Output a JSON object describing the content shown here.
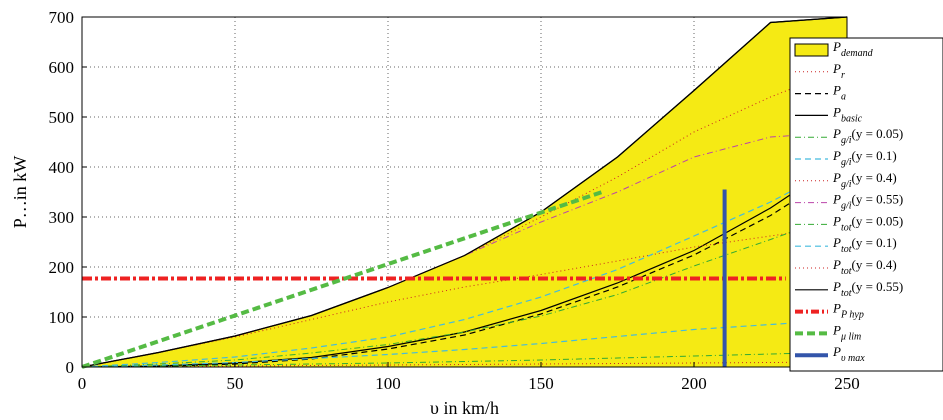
{
  "chart_data": {
    "type": "area",
    "xlabel": "υ in km/h",
    "ylabel": "P…in kW",
    "xlim": [
      0,
      250
    ],
    "ylim": [
      0,
      700
    ],
    "xticks": [
      0,
      50,
      100,
      150,
      200,
      250
    ],
    "yticks": [
      0,
      100,
      200,
      300,
      400,
      500,
      600,
      700
    ],
    "grid": true,
    "legend_position": "right",
    "colors": {
      "demand_fill": "#f5ea14",
      "black": "#000000",
      "red": "#cc2222",
      "green": "#33aa33",
      "cyan": "#44bbdd",
      "magenta": "#bb44aa",
      "hyp": "#ee2222",
      "mulim": "#55bb44",
      "vmax": "#3355aa"
    },
    "x": [
      0,
      25,
      50,
      75,
      100,
      125,
      150,
      175,
      200,
      225,
      250
    ],
    "series": [
      {
        "legend": "P_demand",
        "style": "fill",
        "values": [
          0,
          29,
          62,
          103,
          159,
          223,
          310,
          420,
          553,
          689,
          700
        ]
      },
      {
        "legend": "P_r",
        "style": "dotted-red",
        "values": [
          0,
          1,
          2,
          3,
          4,
          5,
          6,
          7,
          8,
          9,
          10
        ]
      },
      {
        "legend": "P_a",
        "style": "dashed-black",
        "values": [
          0,
          1,
          6,
          16,
          36,
          64,
          106,
          160,
          224,
          303,
          400
        ]
      },
      {
        "legend": "P_basic",
        "style": "solid-black",
        "values": [
          0,
          2,
          8,
          19,
          41,
          70,
          113,
          168,
          233,
          318,
          420
        ]
      },
      {
        "legend": "P_g/i(y = 0.05)",
        "style": "dashdot-green",
        "values": [
          0,
          2,
          4,
          6,
          8,
          11,
          14,
          18,
          22,
          26,
          30
        ]
      },
      {
        "legend": "P_g/i(y = 0.1)",
        "style": "dashed-cyan",
        "values": [
          0,
          4,
          9,
          17,
          25,
          35,
          47,
          61,
          75,
          85,
          95
        ]
      },
      {
        "legend": "P_g/i(y = 0.4)",
        "style": "dotted-red",
        "values": [
          0,
          29,
          60,
          95,
          130,
          160,
          185,
          212,
          240,
          262,
          285
        ]
      },
      {
        "legend": "P_g/i(y = 0.55)",
        "style": "dashdot-magenta",
        "values": [
          0,
          29,
          62,
          103,
          159,
          223,
          290,
          350,
          420,
          460,
          470
        ]
      },
      {
        "legend": "P_tot(y = 0.05)",
        "style": "dashdot-green",
        "values": [
          0,
          6,
          14,
          28,
          45,
          70,
          102,
          145,
          202,
          255,
          310
        ]
      },
      {
        "legend": "P_tot(y = 0.1)",
        "style": "dashed-cyan",
        "values": [
          0,
          9,
          20,
          38,
          60,
          95,
          140,
          195,
          262,
          330,
          410
        ]
      },
      {
        "legend": "P_tot(y = 0.4)",
        "style": "dotted-red",
        "values": [
          0,
          29,
          62,
          103,
          159,
          223,
          300,
          380,
          470,
          540,
          600
        ]
      },
      {
        "legend": "P_tot(y = 0.55)",
        "style": "solid-black",
        "values": [
          0,
          29,
          62,
          103,
          159,
          223,
          310,
          420,
          553,
          689,
          700
        ]
      }
    ],
    "lines": {
      "P_P hyp": {
        "y": 177,
        "x_range": [
          0,
          230
        ]
      },
      "P_μ lim": {
        "x": [
          0,
          170
        ],
        "y": [
          0,
          350
        ]
      },
      "P_υ max": {
        "x": 210,
        "y_range": [
          0,
          355
        ]
      }
    },
    "legend": [
      {
        "base": "P",
        "sub": "demand",
        "tail": "",
        "style": "fill"
      },
      {
        "base": "P",
        "sub": "r",
        "tail": "",
        "style": "dotted-red"
      },
      {
        "base": "P",
        "sub": "a",
        "tail": "",
        "style": "dashed-black"
      },
      {
        "base": "P",
        "sub": "basic",
        "tail": "",
        "style": "solid-black"
      },
      {
        "base": "P",
        "sub": "g/i",
        "tail": "(y = 0.05)",
        "style": "dashdot-green"
      },
      {
        "base": "P",
        "sub": "g/i",
        "tail": "(y = 0.1)",
        "style": "dashed-cyan"
      },
      {
        "base": "P",
        "sub": "g/i",
        "tail": "(y = 0.4)",
        "style": "dotted-red"
      },
      {
        "base": "P",
        "sub": "g/i",
        "tail": "(y = 0.55)",
        "style": "dashdot-magenta"
      },
      {
        "base": "P",
        "sub": "tot",
        "tail": "(y = 0.05)",
        "style": "dashdot-green"
      },
      {
        "base": "P",
        "sub": "tot",
        "tail": "(y = 0.1)",
        "style": "dashed-cyan"
      },
      {
        "base": "P",
        "sub": "tot",
        "tail": "(y = 0.4)",
        "style": "dotted-red"
      },
      {
        "base": "P",
        "sub": "tot",
        "tail": "(y = 0.55)",
        "style": "solid-black"
      },
      {
        "base": "P",
        "sub": "P hyp",
        "tail": "",
        "style": "hyp"
      },
      {
        "base": "P",
        "sub": "μ lim",
        "tail": "",
        "style": "mulim"
      },
      {
        "base": "P",
        "sub": "υ max",
        "tail": "",
        "style": "vmax"
      }
    ]
  }
}
